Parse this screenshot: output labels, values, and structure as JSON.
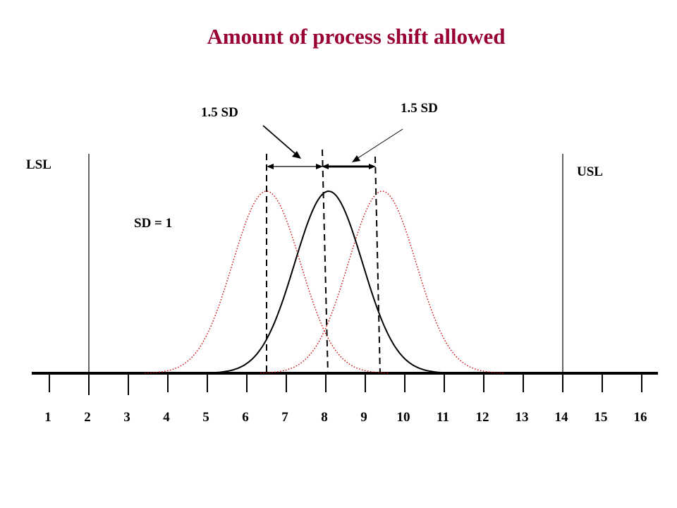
{
  "title": "Amount of process shift allowed",
  "labels": {
    "lsl": "LSL",
    "usl": "USL",
    "sd": "SD = 1",
    "shift_left": "1.5 SD",
    "shift_right": "1.5 SD"
  },
  "axis_ticks": [
    "1",
    "2",
    "3",
    "4",
    "5",
    "6",
    "7",
    "8",
    "9",
    "10",
    "11",
    "12",
    "13",
    "14",
    "15",
    "16"
  ],
  "chart_data": {
    "type": "diagram",
    "lsl": 2,
    "usl": 14,
    "mean": 8,
    "sd": 1,
    "shift": 1.5,
    "curves": [
      {
        "mean": 8,
        "style": "solid",
        "color": "#000000"
      },
      {
        "mean": 6.5,
        "style": "dotted",
        "color": "#cc0000"
      },
      {
        "mean": 9.5,
        "style": "dotted",
        "color": "#cc0000"
      }
    ]
  }
}
